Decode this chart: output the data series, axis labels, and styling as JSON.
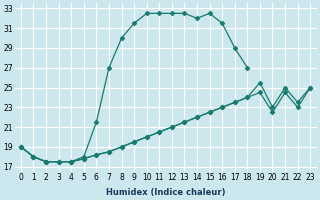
{
  "xlabel": "Humidex (Indice chaleur)",
  "background_color": "#cce8ee",
  "grid_color": "#ffffff",
  "line_color": "#1a7a6e",
  "xlim": [
    -0.5,
    23.5
  ],
  "ylim": [
    16.5,
    33.5
  ],
  "yticks": [
    17,
    19,
    21,
    23,
    25,
    27,
    29,
    31,
    33
  ],
  "xticks": [
    0,
    1,
    2,
    3,
    4,
    5,
    6,
    7,
    8,
    9,
    10,
    11,
    12,
    13,
    14,
    15,
    16,
    17,
    18,
    19,
    20,
    21,
    22,
    23
  ],
  "curve1_x": [
    0,
    1,
    2,
    3,
    4,
    5,
    6,
    7,
    8,
    9,
    10,
    11,
    12,
    13,
    14,
    15,
    16,
    17,
    18
  ],
  "curve1_y": [
    19,
    18,
    17.5,
    17.5,
    17.5,
    18,
    21.5,
    27,
    30,
    31.5,
    32.5,
    32.5,
    32.5,
    32.5,
    32,
    32.5,
    31.5,
    29,
    27
  ],
  "curve2_x": [
    0,
    1,
    2,
    3,
    4,
    5,
    6,
    7,
    8,
    9,
    10,
    11,
    12,
    13,
    14,
    15,
    16,
    17,
    18,
    19,
    20,
    21,
    22,
    23
  ],
  "curve2_y": [
    19,
    18,
    17.5,
    17.5,
    17.5,
    17.8,
    18.2,
    18.5,
    19.0,
    19.5,
    20.0,
    20.5,
    21.0,
    21.5,
    22.0,
    22.5,
    23.0,
    23.5,
    24.0,
    25.5,
    23.0,
    25.0,
    23.5,
    25.0
  ],
  "curve3_x": [
    0,
    1,
    2,
    3,
    4,
    5,
    6,
    7,
    8,
    9,
    10,
    11,
    12,
    13,
    14,
    15,
    16,
    17,
    18,
    19,
    20,
    21,
    22,
    23
  ],
  "curve3_y": [
    19,
    18,
    17.5,
    17.5,
    17.5,
    17.8,
    18.2,
    18.5,
    19.0,
    19.5,
    20.0,
    20.5,
    21.0,
    21.5,
    22.0,
    22.5,
    23.0,
    23.5,
    24.0,
    24.5,
    22.5,
    24.5,
    23.0,
    25.0
  ],
  "marker_symbol": "D",
  "marker_size": 2.5,
  "line_width": 0.9,
  "xlabel_fontsize": 6,
  "tick_fontsize": 5.5
}
